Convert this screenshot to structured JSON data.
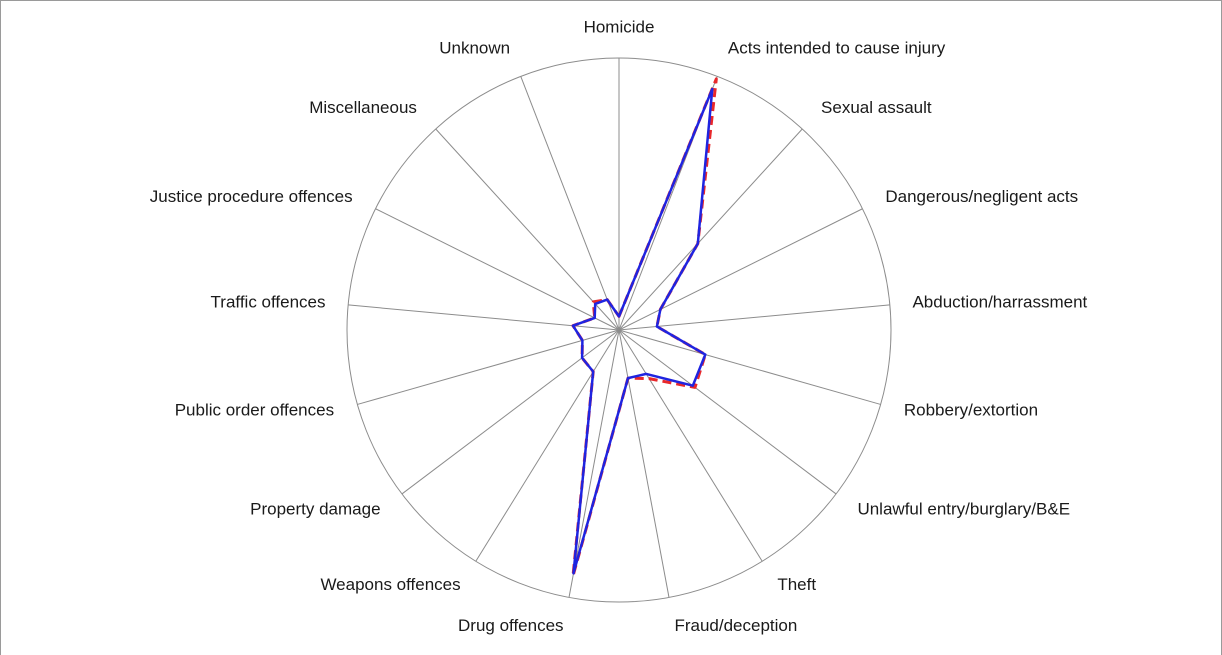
{
  "chart_data": {
    "type": "radar",
    "categories": [
      "Homicide",
      "Acts intended to cause injury",
      "Sexual assault",
      "Dangerous/negligent acts",
      "Abduction/harrassment",
      "Robbery/extortion",
      "Unlawful entry/burglary/B&E",
      "Theft",
      "Fraud/deception",
      "Drug offences",
      "Weapons offences",
      "Property damage",
      "Public order offences",
      "Traffic offences",
      "Justice procedure offences",
      "Miscellaneous",
      "Unknown"
    ],
    "rlim": [
      0,
      1
    ],
    "series": [
      {
        "color": "#e8282b",
        "dashed": true,
        "values": [
          0.05,
          0.99,
          0.43,
          0.17,
          0.14,
          0.33,
          0.35,
          0.21,
          0.18,
          0.92,
          0.18,
          0.17,
          0.14,
          0.17,
          0.1,
          0.14,
          0.12
        ]
      },
      {
        "color": "#1f24e0",
        "dashed": false,
        "values": [
          0.05,
          0.95,
          0.43,
          0.17,
          0.14,
          0.33,
          0.34,
          0.19,
          0.18,
          0.91,
          0.18,
          0.17,
          0.14,
          0.17,
          0.1,
          0.13,
          0.12
        ]
      }
    ]
  }
}
